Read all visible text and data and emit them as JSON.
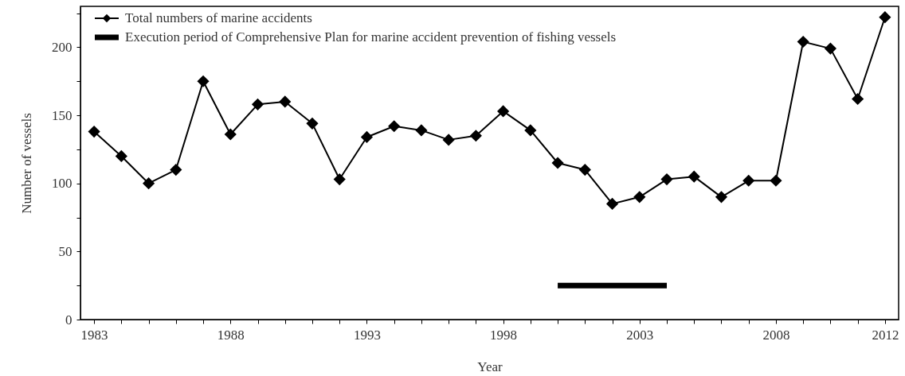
{
  "chart_data": {
    "type": "line",
    "xlabel": "Year",
    "ylabel": "Number of vessels",
    "x": [
      1983,
      1984,
      1985,
      1986,
      1987,
      1988,
      1989,
      1990,
      1991,
      1992,
      1993,
      1994,
      1995,
      1996,
      1997,
      1998,
      1999,
      2000,
      2001,
      2002,
      2003,
      2004,
      2005,
      2006,
      2007,
      2008,
      2009,
      2010,
      2011,
      2012
    ],
    "series": [
      {
        "name": "Total numbers of marine accidents",
        "color": "#000000",
        "marker": "diamond",
        "line_style": "solid",
        "values": [
          138,
          120,
          100,
          110,
          175,
          136,
          158,
          160,
          144,
          103,
          134,
          142,
          139,
          132,
          135,
          153,
          139,
          115,
          110,
          85,
          90,
          103,
          105,
          90,
          102,
          102,
          204,
          199,
          162,
          222
        ]
      },
      {
        "name": "Execution period of Comprehensive Plan for marine accident prevention of fishing vessels",
        "color": "#000000",
        "marker": "none",
        "line_style": "solid",
        "x": [
          2000,
          2004
        ],
        "values": [
          25,
          25
        ]
      }
    ],
    "xlim": [
      1982.5,
      2012.5
    ],
    "xticks": [
      1983,
      {
        "value": 1984,
        "label": null
      },
      {
        "value": 1985,
        "label": null
      },
      {
        "value": 1986,
        "label": null
      },
      {
        "value": 1987,
        "label": null
      },
      1988,
      {
        "value": 1989,
        "label": null
      },
      {
        "value": 1990,
        "label": null
      },
      {
        "value": 1991,
        "label": null
      },
      {
        "value": 1992,
        "label": null
      },
      1993,
      {
        "value": 1994,
        "label": null
      },
      {
        "value": 1995,
        "label": null
      },
      {
        "value": 1996,
        "label": null
      },
      {
        "value": 1997,
        "label": null
      },
      1998,
      {
        "value": 1999,
        "label": null
      },
      {
        "value": 2000,
        "label": null
      },
      {
        "value": 2001,
        "label": null
      },
      {
        "value": 2002,
        "label": null
      },
      2003,
      {
        "value": 2004,
        "label": null
      },
      {
        "value": 2005,
        "label": null
      },
      {
        "value": 2006,
        "label": null
      },
      {
        "value": 2007,
        "label": null
      },
      2008,
      {
        "value": 2009,
        "label": null
      },
      {
        "value": 2010,
        "label": null
      },
      {
        "value": 2011,
        "label": null
      },
      2012
    ],
    "ylim": [
      0,
      230
    ],
    "yticks": [
      0,
      {
        "value": 25,
        "label": null
      },
      50,
      {
        "value": 75,
        "label": null
      },
      100,
      {
        "value": 125,
        "label": null
      },
      150,
      {
        "value": 175,
        "label": null
      },
      200,
      {
        "value": 225,
        "label": null
      }
    ],
    "grid": false,
    "legend": "top left"
  }
}
